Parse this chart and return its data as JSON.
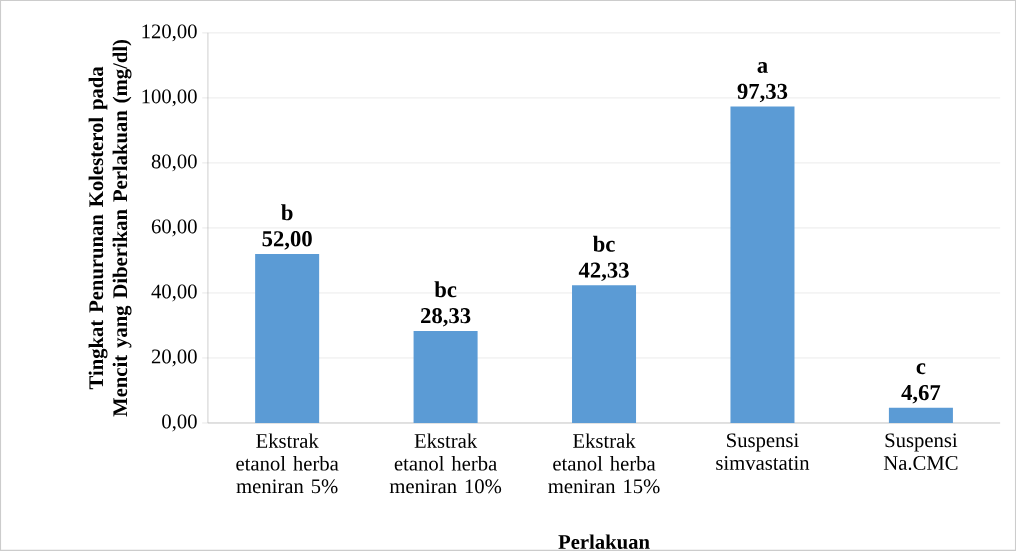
{
  "chart_data": {
    "type": "bar",
    "xlabel": "Perlakuan",
    "ylabel": "Tingkat Penurunan Kolesterol pada Mencit yang Diberikan Perlakuan (mg/dl)",
    "categories": [
      "Ekstrak etanol herba meniran 5%",
      "Ekstrak etanol herba meniran 10%",
      "Ekstrak etanol herba meniran 15%",
      "Suspensi simvastatin",
      "Suspensi Na.CMC"
    ],
    "values": [
      52.0,
      28.33,
      42.33,
      97.33,
      4.67
    ],
    "value_labels": [
      "52,00",
      "28,33",
      "42,33",
      "97,33",
      "4,67"
    ],
    "color": "#5b9bd5",
    "ylim": [
      0,
      120
    ],
    "yticks": [
      {
        "value": 0,
        "label": "0,00"
      },
      {
        "value": 20,
        "label": "20,00"
      },
      {
        "value": 40,
        "label": "40,00"
      },
      {
        "value": 60,
        "label": "60,00"
      },
      {
        "value": 80,
        "label": "80,00"
      },
      {
        "value": 100,
        "label": "100,00"
      },
      {
        "value": 120,
        "label": "120,00"
      }
    ],
    "grid": "y",
    "annotations": [
      {
        "text": "b",
        "x": "Ekstrak etanol herba meniran 5%",
        "y": 52.0
      },
      {
        "text": "bc",
        "x": "Ekstrak etanol herba meniran 10%",
        "y": 28.33
      },
      {
        "text": "bc",
        "x": "Ekstrak etanol herba meniran 15%",
        "y": 42.33
      },
      {
        "text": "a",
        "x": "Suspensi simvastatin",
        "y": 97.33
      },
      {
        "text": "c",
        "x": "Suspensi Na.CMC",
        "y": 4.67
      }
    ]
  }
}
